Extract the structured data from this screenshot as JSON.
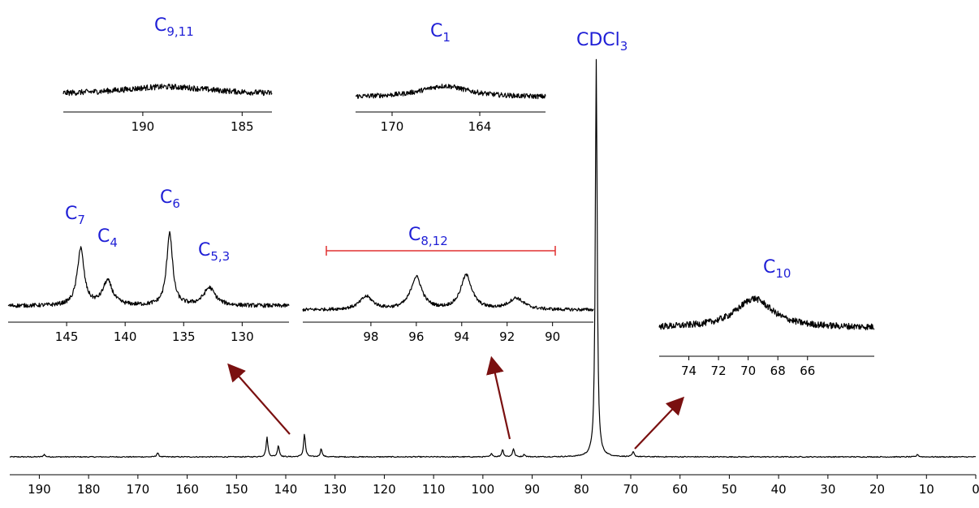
{
  "chart_data": [
    {
      "type": "line",
      "name": "full",
      "xlim": [
        196,
        0
      ],
      "x_ticks": [
        190,
        180,
        170,
        160,
        150,
        140,
        130,
        120,
        110,
        100,
        90,
        80,
        70,
        60,
        50,
        40,
        30,
        20,
        10,
        0
      ],
      "peaks": [
        {
          "x": 189.0,
          "h": 3
        },
        {
          "x": 166.0,
          "h": 5
        },
        {
          "x": 143.8,
          "h": 24
        },
        {
          "x": 141.5,
          "h": 14
        },
        {
          "x": 136.2,
          "h": 28
        },
        {
          "x": 132.8,
          "h": 10
        },
        {
          "x": 98.2,
          "h": 4
        },
        {
          "x": 96.0,
          "h": 9
        },
        {
          "x": 93.8,
          "h": 10
        },
        {
          "x": 91.6,
          "h": 3
        },
        {
          "x": 77.0,
          "h": 490
        },
        {
          "x": 69.5,
          "h": 6
        },
        {
          "x": 11.8,
          "h": 3
        }
      ],
      "label": {
        "base": "CDCl",
        "sub": "3"
      }
    },
    {
      "type": "line",
      "name": "inset-c911",
      "xlim": [
        194,
        183.5
      ],
      "x_ticks": [
        190,
        185
      ],
      "peaks": [
        {
          "x": 188.8,
          "h": 10,
          "w": 3.0
        }
      ],
      "label": {
        "base": "C",
        "sub": "9,11"
      }
    },
    {
      "type": "line",
      "name": "inset-c1",
      "xlim": [
        172.5,
        159.5
      ],
      "x_ticks": [
        170,
        164
      ],
      "peaks": [
        {
          "x": 166.4,
          "h": 14,
          "w": 2.0
        }
      ],
      "label": {
        "base": "C",
        "sub": "1"
      }
    },
    {
      "type": "line",
      "name": "inset-aromatic",
      "xlim": [
        150,
        126
      ],
      "x_ticks": [
        145,
        140,
        135,
        130
      ],
      "peaks": [
        {
          "x": 143.8,
          "h": 70,
          "w": 0.35
        },
        {
          "x": 141.5,
          "h": 30,
          "w": 0.5
        },
        {
          "x": 136.2,
          "h": 90,
          "w": 0.3
        },
        {
          "x": 132.8,
          "h": 22,
          "w": 0.6
        }
      ],
      "labels": [
        {
          "base": "C",
          "sub": "7"
        },
        {
          "base": "C",
          "sub": "4"
        },
        {
          "base": "C",
          "sub": "6"
        },
        {
          "base": "C",
          "sub": "5,3"
        }
      ]
    },
    {
      "type": "line",
      "name": "inset-c812",
      "xlim": [
        101,
        88.2
      ],
      "x_ticks": [
        98,
        96,
        94,
        92,
        90
      ],
      "peaks": [
        {
          "x": 98.2,
          "h": 16,
          "w": 0.35
        },
        {
          "x": 96.0,
          "h": 40,
          "w": 0.3
        },
        {
          "x": 93.8,
          "h": 42,
          "w": 0.3
        },
        {
          "x": 91.6,
          "h": 14,
          "w": 0.4
        }
      ],
      "label": {
        "base": "C",
        "sub": "8,12"
      }
    },
    {
      "type": "line",
      "name": "inset-c10",
      "xlim": [
        76,
        61.5
      ],
      "x_ticks": [
        74,
        72,
        70,
        68,
        66
      ],
      "peaks": [
        {
          "x": 69.6,
          "h": 36,
          "w": 1.5
        }
      ],
      "label": {
        "base": "C",
        "sub": "10"
      }
    }
  ],
  "colors": {
    "label": "#1f1fd6",
    "bracket": "#e03030",
    "arrow": "#7a1010",
    "trace": "#000000"
  }
}
